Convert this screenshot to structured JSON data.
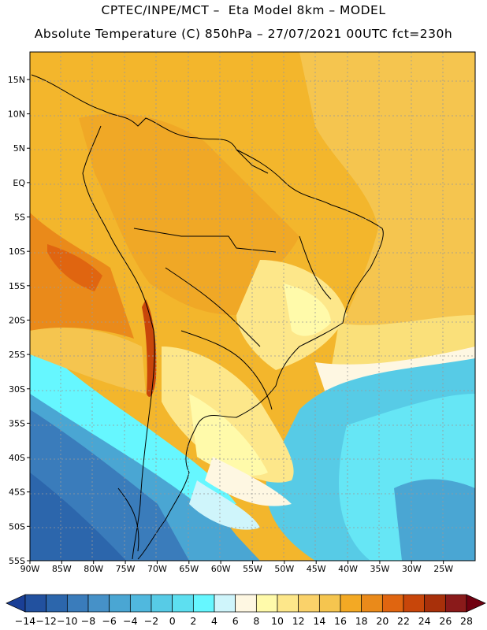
{
  "title_line1": "CPTEC/INPE/MCT –  Eta Model 8km – MODEL",
  "title_line2": "Absolute Temperature (C) 850hPa – 27/07/2021 00UTC fct=230h",
  "map": {
    "lon_labels": [
      "90W",
      "85W",
      "80W",
      "75W",
      "70W",
      "65W",
      "60W",
      "55W",
      "50W",
      "45W",
      "40W",
      "35W",
      "30W",
      "25W"
    ],
    "lat_labels": [
      "15N",
      "10N",
      "5N",
      "EQ",
      "5S",
      "10S",
      "15S",
      "20S",
      "25S",
      "30S",
      "35S",
      "40S",
      "45S",
      "50S",
      "55S"
    ],
    "lon_range": [
      -90,
      -20
    ],
    "lat_range": [
      -55,
      19
    ],
    "gridlines": "dotted"
  },
  "colorbar": {
    "labels": [
      "-14",
      "-12",
      "-10",
      "-8",
      "-6",
      "-4",
      "-2",
      "0",
      "2",
      "4",
      "6",
      "8",
      "10",
      "12",
      "14",
      "16",
      "18",
      "20",
      "22",
      "24",
      "26",
      "28"
    ],
    "colors": [
      "#1a3f96",
      "#22519f",
      "#2c66ac",
      "#3a7cbb",
      "#4691c8",
      "#4aa6d3",
      "#50b8de",
      "#57cbe6",
      "#5ddff0",
      "#66f7ff",
      "#cff5fb",
      "#fef7e2",
      "#fffaaa",
      "#fde78a",
      "#fad26a",
      "#f5c54f",
      "#f3a924",
      "#ea8a1a",
      "#e06510",
      "#c8460a",
      "#a8300a",
      "#8a1a1a",
      "#700010"
    ]
  }
}
